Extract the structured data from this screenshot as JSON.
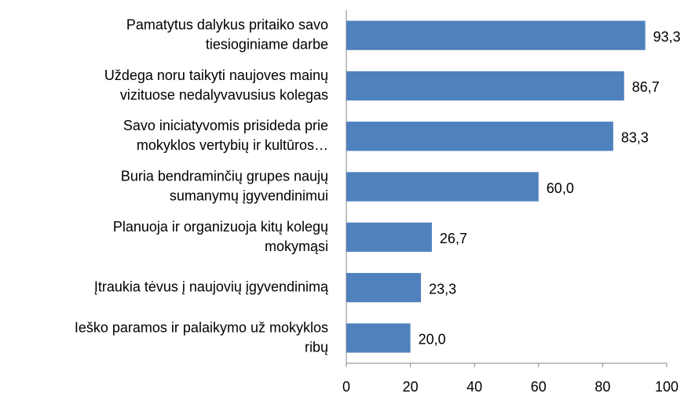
{
  "chart_data": {
    "type": "bar",
    "orientation": "horizontal",
    "categories": [
      "Pamatytus dalykus pritaiko savo tiesioginiame darbe",
      "Uždega noru taikyti naujoves mainų vizituose nedalyvavusius kolegas",
      "Savo iniciatyvomis prisideda prie mokyklos vertybių ir kultūros…",
      "Buria bendraminčių grupes naujų sumanymų įgyvendinimui",
      "Planuoja ir organizuoja kitų kolegų mokymąsi",
      "Įtraukia tėvus į naujovių įgyvendinimą",
      "Ieško paramos ir palaikymo už mokyklos ribų"
    ],
    "values": [
      93.3,
      86.7,
      83.3,
      60.0,
      26.7,
      23.3,
      20.0
    ],
    "value_labels": [
      "93,3",
      "86,7",
      "83,3",
      "60,0",
      "26,7",
      "23,3",
      "20,0"
    ],
    "color": "#4f81bd",
    "xlim": [
      0,
      100
    ],
    "xticks": [
      0,
      20,
      40,
      60,
      80,
      100
    ],
    "grid": false
  }
}
